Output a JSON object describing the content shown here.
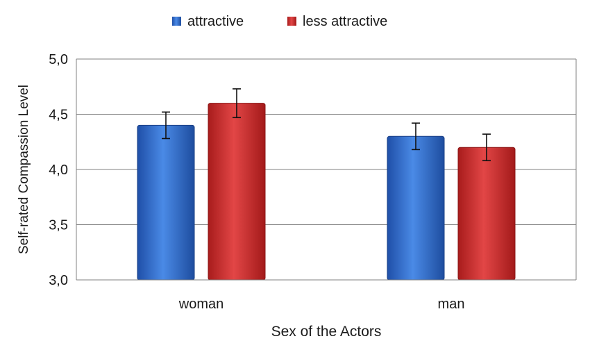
{
  "chart_data": {
    "type": "bar",
    "title": "",
    "categories": [
      "woman",
      "man"
    ],
    "series": [
      {
        "name": "attractive",
        "values": [
          4.4,
          4.3
        ],
        "error": [
          0.12,
          0.12
        ],
        "color": "#2f6fd0"
      },
      {
        "name": "less attractive",
        "values": [
          4.6,
          4.2
        ],
        "error": [
          0.13,
          0.12
        ],
        "color": "#d02a2a"
      }
    ],
    "xlabel": "Sex of the Actors",
    "ylabel": "Self-rated Compassion Level",
    "ylim": [
      3.0,
      5.0
    ],
    "yticks": [
      "3,0",
      "3,5",
      "4,0",
      "4,5",
      "5,0"
    ],
    "ytick_values": [
      3.0,
      3.5,
      4.0,
      4.5,
      5.0
    ],
    "grid": true,
    "legend": "top-center"
  }
}
